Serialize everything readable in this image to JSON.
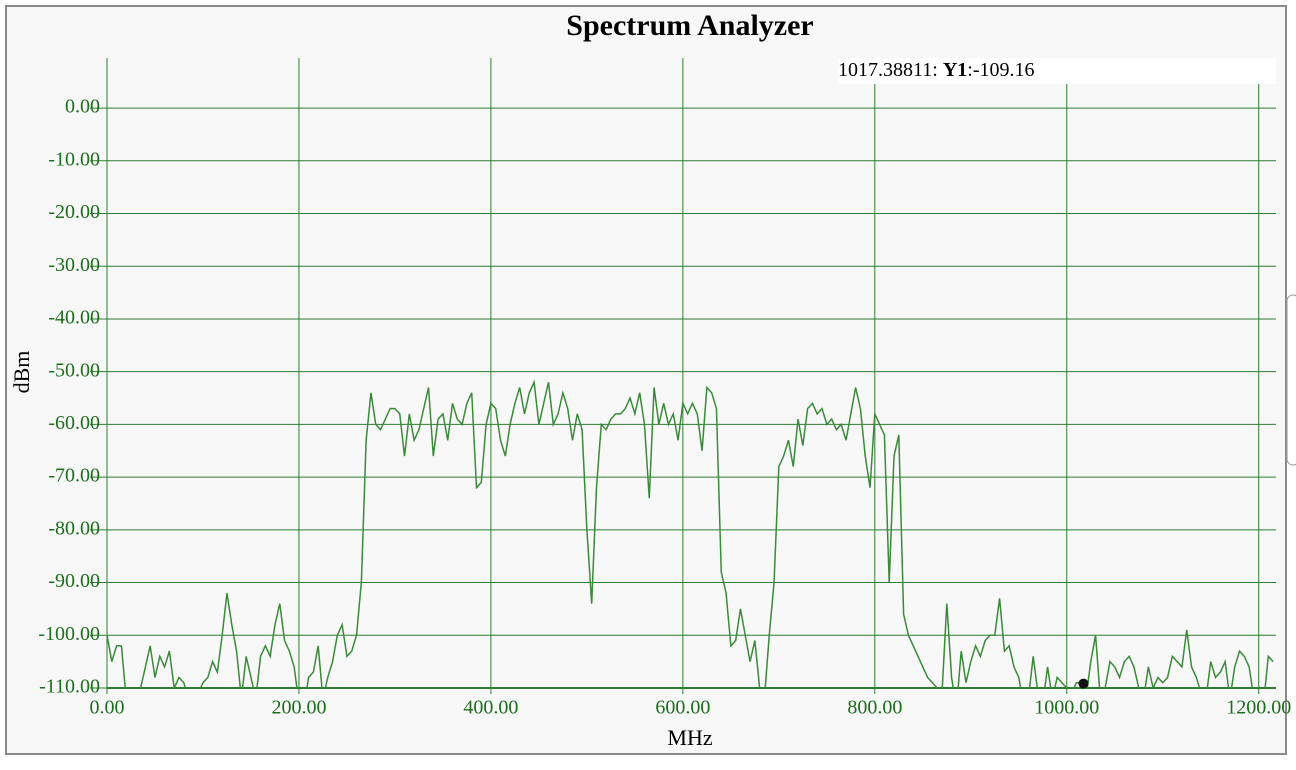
{
  "chart_data": {
    "type": "line",
    "title": "Spectrum Analyzer",
    "xlabel": "MHz",
    "ylabel": "dBm",
    "xlim": [
      0,
      1218
    ],
    "ylim": [
      -110,
      9.5
    ],
    "xticks": [
      {
        "value": 0,
        "label": "0.00"
      },
      {
        "value": 200,
        "label": "200.00"
      },
      {
        "value": 400,
        "label": "400.00"
      },
      {
        "value": 600,
        "label": "600.00"
      },
      {
        "value": 800,
        "label": "800.00"
      },
      {
        "value": 1000,
        "label": "1000.00"
      },
      {
        "value": 1200,
        "label": "1200.00"
      }
    ],
    "yticks": [
      {
        "value": 0,
        "label": "0.00"
      },
      {
        "value": -10,
        "label": "-10.00"
      },
      {
        "value": -20,
        "label": "-20.00"
      },
      {
        "value": -30,
        "label": "-30.00"
      },
      {
        "value": -40,
        "label": "-40.00"
      },
      {
        "value": -50,
        "label": "-50.00"
      },
      {
        "value": -60,
        "label": "-60.00"
      },
      {
        "value": -70,
        "label": "-70.00"
      },
      {
        "value": -80,
        "label": "-80.00"
      },
      {
        "value": -90,
        "label": "-90.00"
      },
      {
        "value": -100,
        "label": "-100.00"
      },
      {
        "value": -110,
        "label": "-110.00"
      }
    ],
    "grid": true,
    "grid_color": "#2e7d32",
    "x": [
      0,
      5,
      10,
      15,
      20,
      25,
      30,
      35,
      40,
      45,
      50,
      55,
      60,
      65,
      70,
      75,
      80,
      85,
      90,
      95,
      100,
      105,
      110,
      115,
      120,
      125,
      130,
      135,
      140,
      145,
      150,
      155,
      160,
      165,
      170,
      175,
      180,
      185,
      190,
      195,
      200,
      205,
      210,
      215,
      220,
      225,
      230,
      235,
      240,
      245,
      250,
      255,
      260,
      265,
      270,
      275,
      280,
      285,
      290,
      295,
      300,
      305,
      310,
      315,
      320,
      325,
      330,
      335,
      340,
      345,
      350,
      355,
      360,
      365,
      370,
      375,
      380,
      385,
      390,
      395,
      400,
      405,
      410,
      415,
      420,
      425,
      430,
      435,
      440,
      445,
      450,
      455,
      460,
      465,
      470,
      475,
      480,
      485,
      490,
      495,
      500,
      505,
      510,
      515,
      520,
      525,
      530,
      535,
      540,
      545,
      550,
      555,
      560,
      565,
      570,
      575,
      580,
      585,
      590,
      595,
      600,
      605,
      610,
      615,
      620,
      625,
      630,
      635,
      640,
      645,
      650,
      655,
      660,
      665,
      670,
      675,
      680,
      685,
      690,
      695,
      700,
      705,
      710,
      715,
      720,
      725,
      730,
      735,
      740,
      745,
      750,
      755,
      760,
      765,
      770,
      775,
      780,
      785,
      790,
      795,
      800,
      805,
      810,
      815,
      820,
      825,
      830,
      835,
      840,
      845,
      850,
      855,
      860,
      865,
      870,
      875,
      880,
      885,
      890,
      895,
      900,
      905,
      910,
      915,
      920,
      925,
      930,
      935,
      940,
      945,
      950,
      955,
      960,
      965,
      970,
      975,
      980,
      985,
      990,
      995,
      1000,
      1005,
      1010,
      1015,
      1020,
      1025,
      1030,
      1035,
      1040,
      1045,
      1050,
      1055,
      1060,
      1065,
      1070,
      1075,
      1080,
      1085,
      1090,
      1095,
      1100,
      1105,
      1110,
      1115,
      1120,
      1125,
      1130,
      1135,
      1140,
      1145,
      1150,
      1155,
      1160,
      1165,
      1170,
      1175,
      1180,
      1185,
      1190,
      1195,
      1200,
      1205,
      1210,
      1215
    ],
    "series": [
      {
        "name": "Y1",
        "color": "#3a8a3a",
        "values": [
          -100,
          -105,
          -102,
          -102,
          -112,
          -113,
          -115,
          -110,
          -106,
          -102,
          -108,
          -104,
          -106,
          -103,
          -110,
          -108,
          -109,
          -112,
          -112,
          -111,
          -109,
          -108,
          -105,
          -107,
          -100,
          -92,
          -98,
          -103,
          -112,
          -104,
          -108,
          -112,
          -104,
          -102,
          -104,
          -98,
          -94,
          -101,
          -103,
          -106,
          -113,
          -114,
          -108,
          -107,
          -102,
          -112,
          -108,
          -105,
          -100,
          -98,
          -104,
          -103,
          -100,
          -90,
          -63,
          -54,
          -60,
          -61,
          -59,
          -57,
          -57,
          -58,
          -66,
          -58,
          -63,
          -61,
          -57,
          -53,
          -66,
          -59,
          -58,
          -63,
          -56,
          -59,
          -60,
          -56,
          -54,
          -72,
          -71,
          -60,
          -56,
          -57,
          -63,
          -66,
          -60,
          -56,
          -53,
          -58,
          -54,
          -52,
          -60,
          -56,
          -52,
          -60,
          -58,
          -54,
          -57,
          -63,
          -58,
          -61,
          -80,
          -94,
          -72,
          -60,
          -61,
          -59,
          -58,
          -58,
          -57,
          -55,
          -58,
          -54,
          -60,
          -74,
          -53,
          -60,
          -56,
          -60,
          -58,
          -63,
          -56,
          -58,
          -56,
          -58,
          -65,
          -53,
          -54,
          -57,
          -88,
          -92,
          -102,
          -101,
          -95,
          -100,
          -105,
          -101,
          -110,
          -112,
          -100,
          -90,
          -68,
          -66,
          -63,
          -68,
          -59,
          -64,
          -57,
          -56,
          -58,
          -57,
          -60,
          -59,
          -61,
          -60,
          -63,
          -58,
          -53,
          -57,
          -66,
          -72,
          -58,
          -60,
          -62,
          -90,
          -66,
          -62,
          -96,
          -100,
          -102,
          -104,
          -106,
          -108,
          -109,
          -110,
          -111,
          -94,
          -108,
          -114,
          -103,
          -109,
          -105,
          -102,
          -104,
          -101,
          -100,
          -100,
          -93,
          -103,
          -102,
          -106,
          -108,
          -113,
          -112,
          -104,
          -111,
          -113,
          -106,
          -112,
          -108,
          -109,
          -110,
          -111,
          -109,
          -109,
          -112,
          -105,
          -100,
          -112,
          -110,
          -105,
          -106,
          -108,
          -105,
          -104,
          -106,
          -110,
          -112,
          -106,
          -110,
          -108,
          -109,
          -108,
          -104,
          -105,
          -106,
          -99,
          -106,
          -108,
          -111,
          -112,
          -105,
          -108,
          -107,
          -105,
          -112,
          -106,
          -103,
          -104,
          -106,
          -112,
          -110,
          -113,
          -104,
          -105
        ]
      }
    ],
    "marker": {
      "x": 1017.38811,
      "y": -109.16
    },
    "marker_readout": [
      "1017.38811: ",
      "Y1",
      ":-109.16"
    ]
  }
}
